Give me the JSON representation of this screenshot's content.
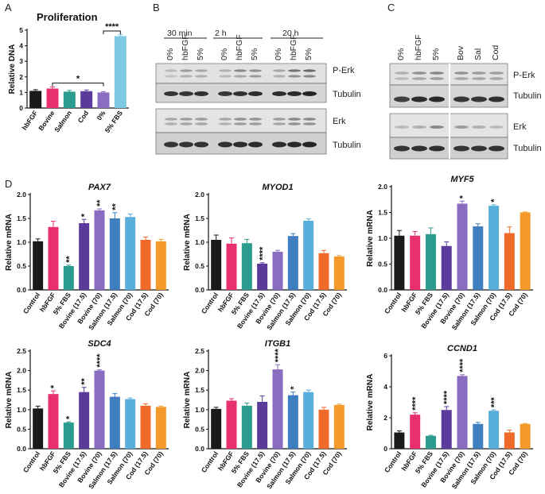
{
  "panel_labels": {
    "a": "A",
    "b": "B",
    "c": "C",
    "d": "D"
  },
  "colors": {
    "black": "#1a1a1a",
    "pink": "#e8306d",
    "teal": "#2a9d8f",
    "purple": "#5a3a9a",
    "lavender": "#8a6cc0",
    "lightblue": "#7ec8e3",
    "medblue": "#3f7fc0",
    "skyblue": "#5aaedc",
    "orange": "#f06a2a",
    "amber": "#f39a2a"
  },
  "blots": {
    "b": {
      "groups": [
        "30 min",
        "2 h",
        "20 h"
      ],
      "lanes": [
        "0%",
        "hbFGF",
        "5%",
        "0%",
        "hbFGF",
        "5%",
        "0%",
        "hbFGF",
        "5%"
      ],
      "labels": [
        "P-Erk",
        "Tubulin",
        "Erk",
        "Tubulin"
      ]
    },
    "c": {
      "lanes": [
        "0%",
        "hbFGF",
        "5%",
        "Bov",
        "Sal",
        "Cod"
      ],
      "labels": [
        "P-Erk",
        "Tubulin",
        "Erk",
        "Tubulin"
      ]
    }
  },
  "chart_data": [
    {
      "id": "A",
      "type": "bar",
      "title": "Proliferation",
      "ylabel": "Relative DNA",
      "xlabel": "",
      "ylim": [
        0,
        5
      ],
      "yticks": [
        0,
        1,
        2,
        3,
        4,
        5
      ],
      "categories": [
        "hbFGF",
        "Bovine",
        "Salmon",
        "Cod",
        "0%",
        "5% FBS"
      ],
      "values": [
        1.1,
        1.25,
        1.05,
        1.08,
        1.0,
        4.62
      ],
      "errors": [
        0.08,
        0.1,
        0.08,
        0.08,
        0.05,
        0.1
      ],
      "colors": [
        "black",
        "pink",
        "teal",
        "purple",
        "lavender",
        "lightblue"
      ],
      "significance": [
        {
          "from": 1,
          "to": 4,
          "label": "*"
        },
        {
          "from": 4,
          "to": 5,
          "label": "****"
        }
      ]
    },
    {
      "id": "PAX7",
      "type": "bar",
      "title": "PAX7",
      "ylabel": "Relative mRNA",
      "ylim": [
        0,
        2.0
      ],
      "yticks": [
        "0.0",
        "0.5",
        "1.0",
        "1.5",
        "2.0"
      ],
      "categories": [
        "Control",
        "hbFGF",
        "5% FBS",
        "Bovine (17.5)",
        "Bovine (70)",
        "Salmon (17.5)",
        "Salmon (70)",
        "Cod (17.5)",
        "Cod (70)"
      ],
      "values": [
        1.02,
        1.32,
        0.5,
        1.4,
        1.67,
        1.5,
        1.53,
        1.05,
        1.02
      ],
      "errors": [
        0.05,
        0.12,
        0.02,
        0.08,
        0.03,
        0.12,
        0.06,
        0.06,
        0.04
      ],
      "labels": [
        "",
        "",
        "**",
        "*",
        "**",
        "**",
        "",
        "",
        ""
      ]
    },
    {
      "id": "MYOD1",
      "type": "bar",
      "title": "MYOD1",
      "ylabel": "Relative mRNA",
      "ylim": [
        0,
        2.0
      ],
      "yticks": [
        "0.0",
        "0.5",
        "1.0",
        "1.5",
        "2.0"
      ],
      "categories": [
        "Control",
        "hbFGF",
        "5% FBS",
        "Bovine (17.5)",
        "Bovine (70)",
        "Salmon (17.5)",
        "Salmon (70)",
        "Cod (17.5)",
        "Cod (70)"
      ],
      "values": [
        1.05,
        0.97,
        0.98,
        0.55,
        0.8,
        1.13,
        1.45,
        0.77,
        0.7
      ],
      "errors": [
        0.1,
        0.12,
        0.08,
        0.02,
        0.03,
        0.05,
        0.04,
        0.06,
        0.02
      ],
      "labels": [
        "",
        "",
        "",
        "****",
        "",
        "",
        "",
        "",
        ""
      ]
    },
    {
      "id": "MYF5",
      "type": "bar",
      "title": "MYF5",
      "ylabel": "Relative mRNA",
      "ylim": [
        0,
        2.0
      ],
      "yticks": [
        "0.0",
        "0.5",
        "1.0",
        "1.5",
        "2.0"
      ],
      "categories": [
        "Control",
        "hbFGF",
        "5% FBS",
        "Bovine (17.5)",
        "Bovine (70)",
        "Salmon (17.5)",
        "Salmon (70)",
        "Cod (17.5)",
        "Cod (70)"
      ],
      "values": [
        1.05,
        1.05,
        1.08,
        0.85,
        1.67,
        1.23,
        1.63,
        1.1,
        1.5
      ],
      "errors": [
        0.1,
        0.08,
        0.12,
        0.08,
        0.05,
        0.05,
        0.02,
        0.12,
        0.01
      ],
      "labels": [
        "",
        "",
        "",
        "",
        "*",
        "",
        "*",
        "",
        ""
      ]
    },
    {
      "id": "SDC4",
      "type": "bar",
      "title": "SDC4",
      "ylabel": "Relative mRNA",
      "ylim": [
        0,
        2.5
      ],
      "yticks": [
        "0.0",
        "0.5",
        "1.0",
        "1.5",
        "2.0",
        "2.5"
      ],
      "categories": [
        "Control",
        "hbFGF",
        "5% FBS",
        "Bovine (17.5)",
        "Bovine (70)",
        "Salmon (17.5)",
        "Salmon (70)",
        "Cod (17.5)",
        "Cod (70)"
      ],
      "values": [
        1.03,
        1.4,
        0.67,
        1.45,
        2.0,
        1.33,
        1.27,
        1.1,
        1.07
      ],
      "errors": [
        0.06,
        0.08,
        0.02,
        0.12,
        0.02,
        0.08,
        0.03,
        0.05,
        0.02
      ],
      "labels": [
        "",
        "*",
        "*",
        "**",
        "****",
        "",
        "",
        "",
        ""
      ]
    },
    {
      "id": "ITGB1",
      "type": "bar",
      "title": "ITGB1",
      "ylabel": "Relative mRNA",
      "ylim": [
        0,
        2.5
      ],
      "yticks": [
        "0.0",
        "0.5",
        "1.0",
        "1.5",
        "2.0",
        "2.5"
      ],
      "categories": [
        "Control",
        "hbFGF",
        "5% FBS",
        "Bovine (17.5)",
        "Bovine (70)",
        "Salmon (17.5)",
        "Salmon (70)",
        "Cod (17.5)",
        "Cod (70)"
      ],
      "values": [
        1.02,
        1.23,
        1.1,
        1.2,
        2.03,
        1.37,
        1.45,
        1.0,
        1.12
      ],
      "errors": [
        0.04,
        0.05,
        0.07,
        0.15,
        0.12,
        0.08,
        0.05,
        0.06,
        0.02
      ],
      "labels": [
        "",
        "",
        "",
        "",
        "****",
        "*",
        "",
        "",
        ""
      ]
    },
    {
      "id": "CCND1",
      "type": "bar",
      "title": "CCND1",
      "ylabel": "Relative mRNA",
      "ylim": [
        0,
        6
      ],
      "yticks": [
        "0",
        "2",
        "4",
        "6"
      ],
      "categories": [
        "Control",
        "hbFGF",
        "5% FBS",
        "Bovine (17.5)",
        "Bovine (70)",
        "Salmon (17.5)",
        "Salmon (70)",
        "Cod (17.5)",
        "Cod (70)"
      ],
      "values": [
        1.05,
        2.2,
        0.83,
        2.5,
        4.7,
        1.6,
        2.45,
        1.05,
        1.6
      ],
      "errors": [
        0.1,
        0.12,
        0.04,
        0.22,
        0.08,
        0.1,
        0.06,
        0.15,
        0.03
      ],
      "labels": [
        "",
        "****",
        "",
        "****",
        "****",
        "",
        "***",
        "",
        ""
      ]
    }
  ],
  "qpcr_colors": [
    "black",
    "pink",
    "teal",
    "purple",
    "lavender",
    "medblue",
    "skyblue",
    "orange",
    "amber"
  ]
}
